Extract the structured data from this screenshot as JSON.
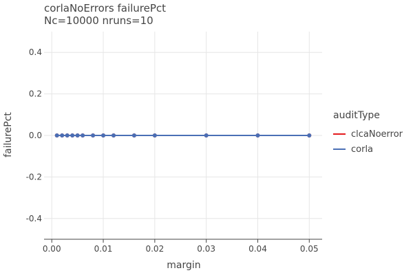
{
  "chart_data": {
    "type": "line",
    "title": "corlaNoErrors failurePct",
    "subtitle": "Nc=10000 nruns=10",
    "xlabel": "margin",
    "ylabel": "failurePct",
    "xlim": [
      -0.0015,
      0.0525
    ],
    "ylim": [
      -0.5,
      0.5
    ],
    "x_ticks": [
      0,
      0.01,
      0.02,
      0.03,
      0.04,
      0.05
    ],
    "x_tick_labels": [
      "0.00",
      "0.01",
      "0.02",
      "0.03",
      "0.04",
      "0.05"
    ],
    "y_ticks": [
      0.4,
      0.2,
      0.0,
      -0.2,
      -0.4
    ],
    "y_tick_labels": [
      "0.4",
      "0.2",
      "0.0",
      "-0.2",
      "-0.4"
    ],
    "grid": true,
    "legend_position": "right",
    "legend_title": "auditType",
    "series": [
      {
        "name": "clcaNoerror",
        "color": "#e41a1c",
        "x": [
          0.001,
          0.002,
          0.003,
          0.004,
          0.005,
          0.006,
          0.008,
          0.01,
          0.012,
          0.016,
          0.02,
          0.03,
          0.04,
          0.05
        ],
        "y": [
          0,
          0,
          0,
          0,
          0,
          0,
          0,
          0,
          0,
          0,
          0,
          0,
          0,
          0
        ]
      },
      {
        "name": "corla",
        "color": "#4a6fb5",
        "x": [
          0.001,
          0.002,
          0.003,
          0.004,
          0.005,
          0.006,
          0.008,
          0.01,
          0.012,
          0.016,
          0.02,
          0.03,
          0.04,
          0.05
        ],
        "y": [
          0,
          0,
          0,
          0,
          0,
          0,
          0,
          0,
          0,
          0,
          0,
          0,
          0,
          0
        ]
      }
    ]
  }
}
